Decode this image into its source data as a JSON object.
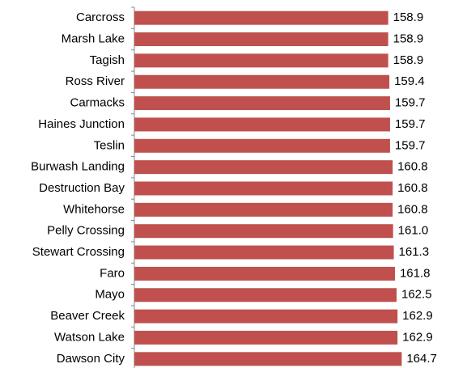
{
  "chart_data": {
    "type": "barh",
    "categories": [
      "Carcross",
      "Marsh Lake",
      "Tagish",
      "Ross River",
      "Carmacks",
      "Haines Junction",
      "Teslin",
      "Burwash Landing",
      "Destruction Bay",
      "Whitehorse",
      "Pelly Crossing",
      "Stewart Crossing",
      "Faro",
      "Mayo",
      "Beaver Creek",
      "Watson Lake",
      "Dawson City"
    ],
    "values": [
      158.9,
      158.9,
      158.9,
      159.4,
      159.7,
      159.7,
      159.7,
      160.8,
      160.8,
      160.8,
      161.0,
      161.3,
      161.8,
      162.5,
      162.9,
      162.9,
      164.7
    ],
    "value_labels": [
      "158.9",
      "158.9",
      "158.9",
      "159.4",
      "159.7",
      "159.7",
      "159.7",
      "160.8",
      "160.8",
      "160.8",
      "161.0",
      "161.3",
      "161.8",
      "162.5",
      "162.9",
      "162.9",
      "164.7"
    ],
    "color": "#c0504d",
    "xlim": [
      50,
      175
    ]
  }
}
